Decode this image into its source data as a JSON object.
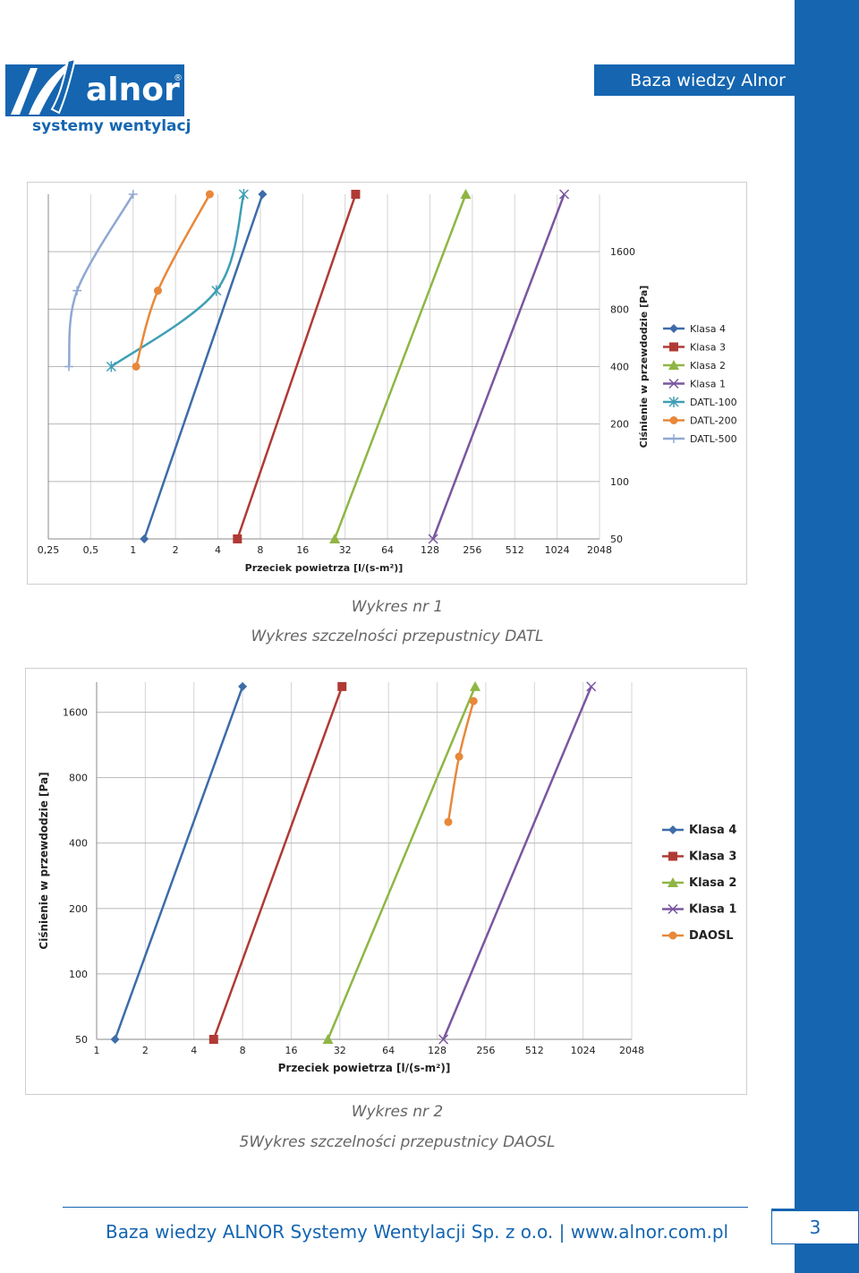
{
  "header": {
    "title": "Baza wiedzy Alnor"
  },
  "logo": {
    "name": "alnor",
    "registered": "®",
    "tagline": "systemy wentylacji"
  },
  "captions": {
    "chart1_line1": "Wykres nr 1",
    "chart1_line2": "Wykres szczelności przepustnicy DATL",
    "chart2_line1": "Wykres nr 2",
    "chart2_line2": "5Wykres szczelności przepustnicy DAOSL"
  },
  "footer": {
    "text": "Baza wiedzy ALNOR Systemy Wentylacji Sp. z o.o.  |  www.alnor.com.pl",
    "page_number": "3"
  },
  "colors": {
    "brand_blue": "#1565b0",
    "klasa4": "#3d6ca8",
    "klasa3": "#b03a35",
    "klasa2": "#8fb644",
    "klasa1": "#7a56a0",
    "datl100": "#3f9fb5",
    "datl200": "#e8883a",
    "datl500": "#90a8d2",
    "daosl": "#e8883a"
  },
  "chart_data": [
    {
      "type": "line",
      "title": "",
      "xlabel": "Przeciek powietrza [l/(s-m²)]",
      "ylabel": "Ciśnienie w przewdodzie [Pa]",
      "x_scale": "log2",
      "y_scale": "log2",
      "xlim": [
        0.25,
        2048
      ],
      "ylim": [
        50,
        3200
      ],
      "x_ticks": [
        "0,25",
        "0,5",
        "1",
        "2",
        "4",
        "8",
        "16",
        "32",
        "64",
        "128",
        "256",
        "512",
        "1024",
        "2048"
      ],
      "y_ticks": [
        "50",
        "100",
        "200",
        "400",
        "800",
        "1600"
      ],
      "y_axis_side": "right",
      "grid": true,
      "legend": "right",
      "series": [
        {
          "name": "Klasa 4",
          "marker": "diamond",
          "color": "#3d6ca8",
          "points": [
            [
              1.2,
              50
            ],
            [
              8.3,
              3200
            ]
          ]
        },
        {
          "name": "Klasa 3",
          "marker": "square",
          "color": "#b03a35",
          "points": [
            [
              5.5,
              50
            ],
            [
              38,
              3200
            ]
          ]
        },
        {
          "name": "Klasa 2",
          "marker": "triangle",
          "color": "#8fb644",
          "points": [
            [
              27,
              50
            ],
            [
              230,
              3200
            ]
          ]
        },
        {
          "name": "Klasa 1",
          "marker": "x",
          "color": "#7a56a0",
          "points": [
            [
              135,
              50
            ],
            [
              1150,
              3200
            ]
          ]
        },
        {
          "name": "DATL-100",
          "marker": "star",
          "color": "#3f9fb5",
          "points": [
            [
              0.7,
              400
            ],
            [
              3.9,
              1000
            ],
            [
              6.1,
              3200
            ]
          ]
        },
        {
          "name": "DATL-200",
          "marker": "circle",
          "color": "#e8883a",
          "points": [
            [
              1.05,
              400
            ],
            [
              1.5,
              1000
            ],
            [
              3.5,
              3200
            ]
          ]
        },
        {
          "name": "DATL-500",
          "marker": "plus",
          "color": "#90a8d2",
          "points": [
            [
              0.35,
              400
            ],
            [
              0.4,
              1000
            ],
            [
              1.0,
              3200
            ]
          ]
        }
      ]
    },
    {
      "type": "line",
      "title": "",
      "xlabel": "Przeciek powietrza [l/(s-m²)]",
      "ylabel": "Ciśnienie w przewdodzie [Pa]",
      "x_scale": "log2",
      "y_scale": "log2",
      "xlim": [
        1,
        2048
      ],
      "ylim": [
        50,
        2200
      ],
      "x_ticks": [
        "1",
        "2",
        "4",
        "8",
        "16",
        "32",
        "64",
        "128",
        "256",
        "512",
        "1024",
        "2048"
      ],
      "y_ticks": [
        "50",
        "100",
        "200",
        "400",
        "800",
        "1600"
      ],
      "y_axis_side": "left",
      "grid": true,
      "legend": "right",
      "series": [
        {
          "name": "Klasa 4",
          "marker": "diamond",
          "color": "#3d6ca8",
          "points": [
            [
              1.3,
              50
            ],
            [
              8,
              2100
            ]
          ]
        },
        {
          "name": "Klasa 3",
          "marker": "square",
          "color": "#b03a35",
          "points": [
            [
              5.3,
              50
            ],
            [
              33,
              2100
            ]
          ]
        },
        {
          "name": "Klasa 2",
          "marker": "triangle",
          "color": "#8fb644",
          "points": [
            [
              27,
              50
            ],
            [
              220,
              2100
            ]
          ]
        },
        {
          "name": "Klasa 1",
          "marker": "x",
          "color": "#7a56a0",
          "points": [
            [
              140,
              50
            ],
            [
              1150,
              2100
            ]
          ]
        },
        {
          "name": "DAOSL",
          "marker": "circle",
          "color": "#e8883a",
          "points": [
            [
              150,
              500
            ],
            [
              175,
              1000
            ],
            [
              215,
              1800
            ]
          ]
        }
      ]
    }
  ]
}
